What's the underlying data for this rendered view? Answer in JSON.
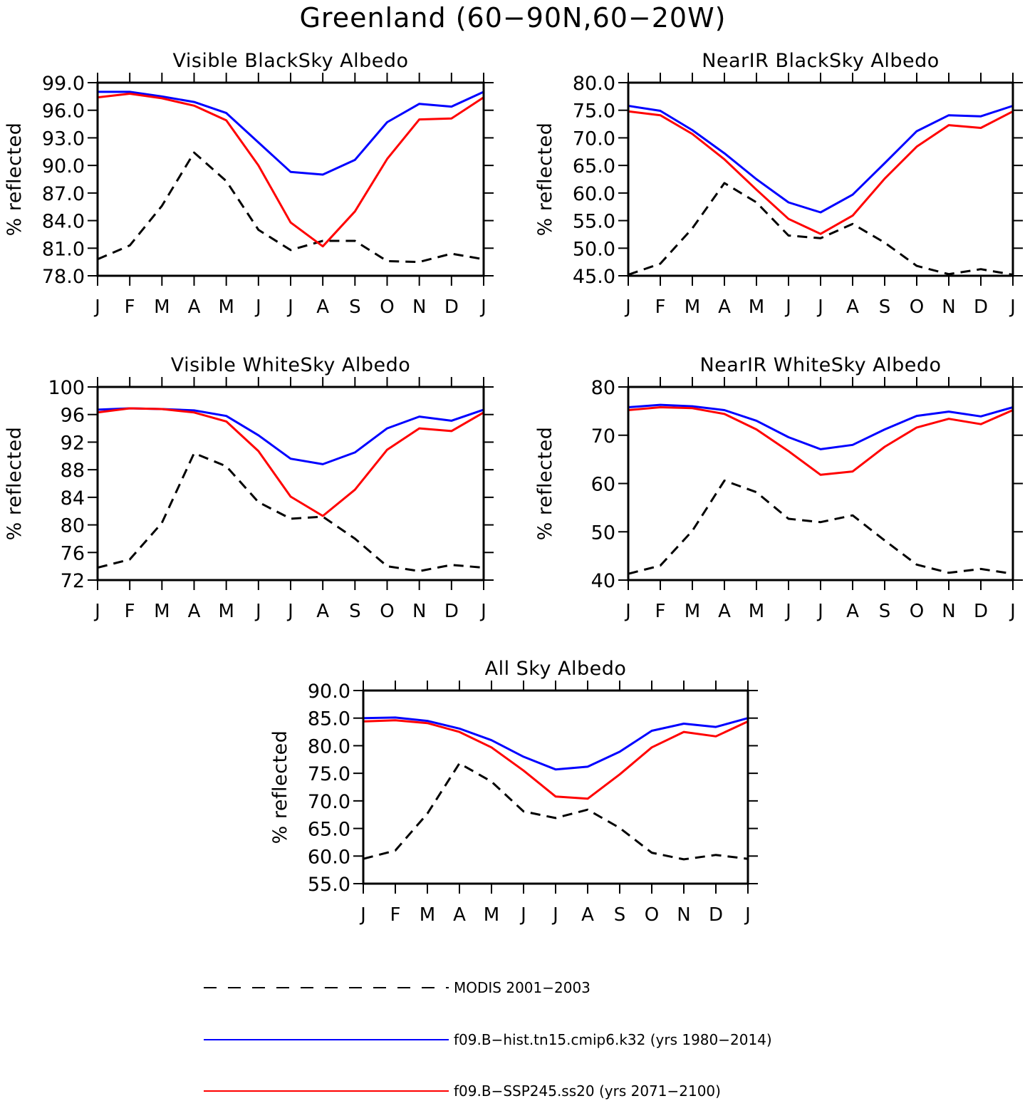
{
  "figure": {
    "title": "Greenland (60−90N,60−20W)"
  },
  "legend": {
    "items": [
      {
        "label": "MODIS 2001−2003",
        "color": "#000000",
        "dash": true
      },
      {
        "label": "f09.B−hist.tn15.cmip6.k32 (yrs 1980−2014)",
        "color": "#0000ff",
        "dash": false
      },
      {
        "label": "f09.B−SSP245.ss20 (yrs 2071−2100)",
        "color": "#ff0000",
        "dash": false
      }
    ]
  },
  "chart_data": [
    {
      "type": "line",
      "title": "Visible BlackSky Albedo",
      "xlabel": "",
      "ylabel": "% reflected",
      "categories": [
        "J",
        "F",
        "M",
        "A",
        "M",
        "J",
        "J",
        "A",
        "S",
        "O",
        "N",
        "D",
        "J"
      ],
      "ylim": [
        78.0,
        99.0
      ],
      "yticks": [
        "78.0",
        "81.0",
        "84.0",
        "87.0",
        "90.0",
        "93.0",
        "96.0",
        "99.0"
      ],
      "series": [
        {
          "color": "#000000",
          "dash": true,
          "values": [
            79.8,
            81.3,
            85.6,
            91.4,
            88.3,
            83.0,
            80.8,
            81.8,
            81.8,
            79.6,
            79.5,
            80.4,
            79.8
          ]
        },
        {
          "color": "#0000ff",
          "dash": false,
          "values": [
            98.0,
            98.0,
            97.5,
            96.9,
            95.7,
            92.5,
            89.3,
            89.0,
            90.6,
            94.7,
            96.7,
            96.4,
            98.0
          ]
        },
        {
          "color": "#ff0000",
          "dash": false,
          "values": [
            97.4,
            97.8,
            97.3,
            96.5,
            94.9,
            90.0,
            83.8,
            81.2,
            85.0,
            90.7,
            95.0,
            95.1,
            97.4
          ]
        }
      ]
    },
    {
      "type": "line",
      "title": "NearIR BlackSky Albedo",
      "xlabel": "",
      "ylabel": "% reflected",
      "categories": [
        "J",
        "F",
        "M",
        "A",
        "M",
        "J",
        "J",
        "A",
        "S",
        "O",
        "N",
        "D",
        "J"
      ],
      "ylim": [
        45.0,
        80.0
      ],
      "yticks": [
        "45.0",
        "50.0",
        "55.0",
        "60.0",
        "65.0",
        "70.0",
        "75.0",
        "80.0"
      ],
      "series": [
        {
          "color": "#000000",
          "dash": true,
          "values": [
            45.2,
            47.2,
            53.6,
            61.8,
            58.3,
            52.3,
            51.8,
            54.4,
            51.0,
            46.8,
            45.3,
            46.2,
            45.2
          ]
        },
        {
          "color": "#0000ff",
          "dash": false,
          "values": [
            75.8,
            74.9,
            71.4,
            67.2,
            62.5,
            58.3,
            56.5,
            59.7,
            65.4,
            71.2,
            74.1,
            73.9,
            75.8
          ]
        },
        {
          "color": "#ff0000",
          "dash": false,
          "values": [
            74.8,
            74.1,
            70.7,
            66.1,
            60.6,
            55.3,
            52.6,
            55.9,
            62.6,
            68.4,
            72.3,
            71.8,
            74.8
          ]
        }
      ]
    },
    {
      "type": "line",
      "title": "Visible WhiteSky Albedo",
      "xlabel": "",
      "ylabel": "% reflected",
      "categories": [
        "J",
        "F",
        "M",
        "A",
        "M",
        "J",
        "J",
        "A",
        "S",
        "O",
        "N",
        "D",
        "J"
      ],
      "ylim": [
        72,
        100
      ],
      "yticks": [
        "72",
        "76",
        "80",
        "84",
        "88",
        "92",
        "96",
        "100"
      ],
      "series": [
        {
          "color": "#000000",
          "dash": true,
          "values": [
            73.8,
            75.0,
            80.3,
            90.4,
            88.5,
            83.3,
            80.9,
            81.2,
            78.0,
            74.0,
            73.3,
            74.2,
            73.8
          ]
        },
        {
          "color": "#0000ff",
          "dash": false,
          "values": [
            96.7,
            96.9,
            96.8,
            96.6,
            95.8,
            93.0,
            89.6,
            88.8,
            90.5,
            94.0,
            95.7,
            95.1,
            96.7
          ]
        },
        {
          "color": "#ff0000",
          "dash": false,
          "values": [
            96.3,
            96.9,
            96.8,
            96.3,
            95.0,
            90.7,
            84.1,
            81.3,
            85.1,
            90.9,
            94.0,
            93.6,
            96.3
          ]
        }
      ]
    },
    {
      "type": "line",
      "title": "NearIR WhiteSky Albedo",
      "xlabel": "",
      "ylabel": "% reflected",
      "categories": [
        "J",
        "F",
        "M",
        "A",
        "M",
        "J",
        "J",
        "A",
        "S",
        "O",
        "N",
        "D",
        "J"
      ],
      "ylim": [
        40,
        80
      ],
      "yticks": [
        "40",
        "50",
        "60",
        "70",
        "80"
      ],
      "series": [
        {
          "color": "#000000",
          "dash": true,
          "values": [
            41.3,
            43.0,
            50.2,
            60.6,
            58.2,
            52.7,
            52.0,
            53.4,
            48.2,
            43.2,
            41.5,
            42.3,
            41.3
          ]
        },
        {
          "color": "#0000ff",
          "dash": false,
          "values": [
            75.8,
            76.3,
            76.0,
            75.2,
            73.0,
            69.6,
            67.1,
            68.0,
            71.2,
            74.0,
            74.9,
            73.9,
            75.8
          ]
        },
        {
          "color": "#ff0000",
          "dash": false,
          "values": [
            75.2,
            75.8,
            75.6,
            74.4,
            71.2,
            66.7,
            61.8,
            62.5,
            67.6,
            71.6,
            73.4,
            72.3,
            75.2
          ]
        }
      ]
    },
    {
      "type": "line",
      "title": "All Sky Albedo",
      "xlabel": "",
      "ylabel": "% reflected",
      "categories": [
        "J",
        "F",
        "M",
        "A",
        "M",
        "J",
        "J",
        "A",
        "S",
        "O",
        "N",
        "D",
        "J"
      ],
      "ylim": [
        55.0,
        90.0
      ],
      "yticks": [
        "55.0",
        "60.0",
        "65.0",
        "70.0",
        "75.0",
        "80.0",
        "85.0",
        "90.0"
      ],
      "series": [
        {
          "color": "#000000",
          "dash": true,
          "values": [
            59.5,
            61.0,
            67.7,
            76.8,
            73.5,
            68.1,
            66.9,
            68.4,
            65.1,
            60.6,
            59.4,
            60.2,
            59.5
          ]
        },
        {
          "color": "#0000ff",
          "dash": false,
          "values": [
            85.0,
            85.1,
            84.5,
            83.1,
            81.0,
            78.0,
            75.7,
            76.2,
            78.9,
            82.7,
            84.0,
            83.4,
            85.0
          ]
        },
        {
          "color": "#ff0000",
          "dash": false,
          "values": [
            84.4,
            84.6,
            84.1,
            82.5,
            79.7,
            75.5,
            70.8,
            70.4,
            74.8,
            79.7,
            82.5,
            81.7,
            84.4
          ]
        }
      ]
    }
  ]
}
